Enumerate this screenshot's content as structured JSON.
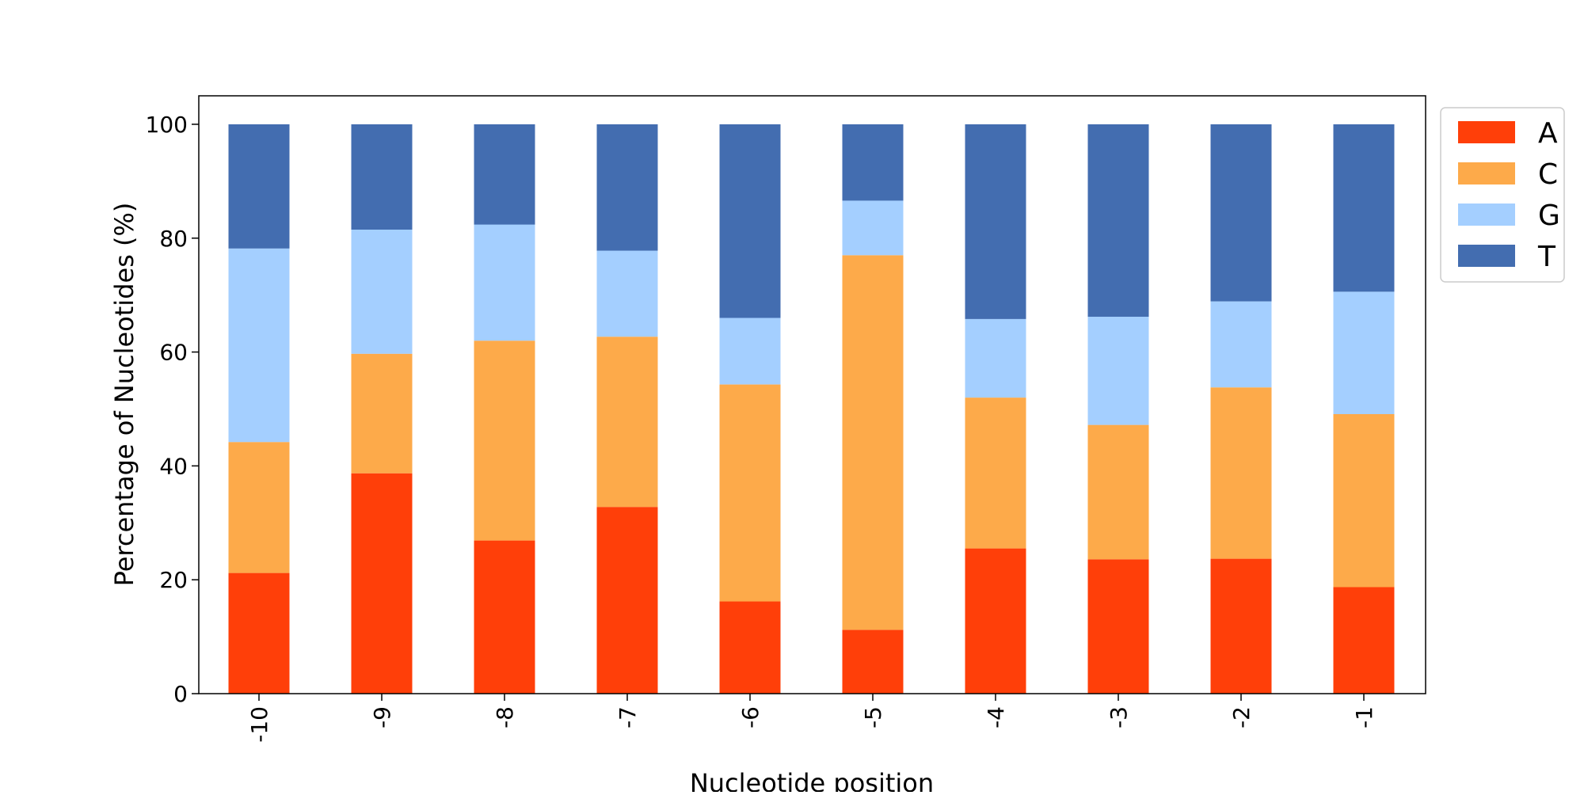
{
  "chart_data": {
    "type": "bar",
    "stacked": true,
    "title": "",
    "xlabel": "Nucleotide position",
    "ylabel": "Percentage of Nucleotides (%)",
    "ylim": [
      0,
      105
    ],
    "yticks": [
      "0",
      "20",
      "40",
      "60",
      "80",
      "100"
    ],
    "grid": false,
    "legend_position": "outside-top-right",
    "categories": [
      "-10",
      "-9",
      "-8",
      "-7",
      "-6",
      "-5",
      "-4",
      "-3",
      "-2",
      "-1"
    ],
    "series": [
      {
        "name": "A",
        "color": "#ff3f09",
        "values": [
          21.2,
          38.7,
          26.9,
          32.8,
          16.2,
          11.2,
          25.5,
          23.6,
          23.7,
          18.7
        ]
      },
      {
        "name": "C",
        "color": "#fdaa4a",
        "values": [
          23.0,
          21.0,
          35.1,
          29.9,
          38.1,
          65.8,
          26.5,
          23.6,
          30.1,
          30.4
        ]
      },
      {
        "name": "G",
        "color": "#a4cfff",
        "values": [
          34.0,
          21.8,
          20.4,
          15.1,
          11.7,
          9.6,
          13.8,
          19.0,
          15.1,
          21.5
        ]
      },
      {
        "name": "T",
        "color": "#436db0",
        "values": [
          21.8,
          18.5,
          17.6,
          22.2,
          34.0,
          13.4,
          34.2,
          33.8,
          31.1,
          29.4
        ]
      }
    ]
  }
}
